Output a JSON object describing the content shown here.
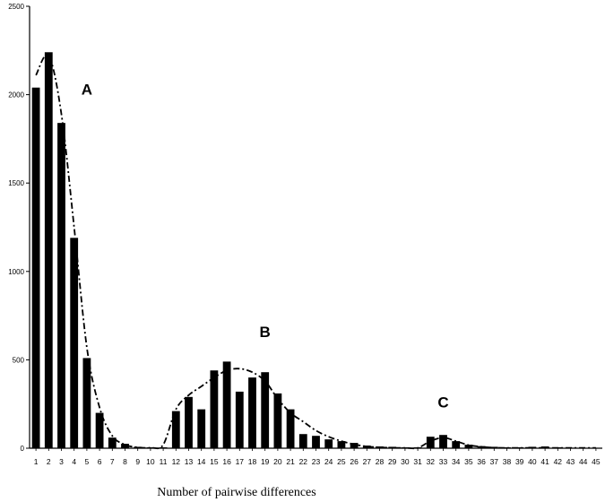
{
  "chart_data": {
    "type": "bar",
    "title": "",
    "xlabel": "Number of pairwise differences",
    "ylabel": "",
    "ylim": [
      0,
      2500
    ],
    "y_ticks": [
      "0",
      "500",
      "1000",
      "1500",
      "2000",
      "2500"
    ],
    "grid": false,
    "categories": [
      "1",
      "2",
      "3",
      "4",
      "5",
      "6",
      "7",
      "8",
      "9",
      "10",
      "11",
      "12",
      "13",
      "14",
      "15",
      "16",
      "17",
      "18",
      "19",
      "20",
      "21",
      "22",
      "23",
      "24",
      "25",
      "26",
      "27",
      "28",
      "29",
      "30",
      "31",
      "32",
      "33",
      "34",
      "35",
      "36",
      "37",
      "38",
      "39",
      "40",
      "41",
      "42",
      "43",
      "44",
      "45"
    ],
    "x_tick_labels": [
      "1",
      "2",
      "3",
      "4",
      "5",
      "6",
      "7",
      "8",
      "9",
      "10",
      "11",
      "12",
      "13",
      "14",
      "15",
      "16",
      "17",
      "18",
      "19",
      "20",
      "21",
      "22",
      "23",
      "24",
      "25",
      "26",
      "27",
      "28",
      "29",
      "30",
      "31",
      "32",
      "33",
      "34",
      "35",
      "36",
      "37",
      "38",
      "39",
      "40",
      "41",
      "42",
      "43",
      "44",
      "45"
    ],
    "series": [
      {
        "kind": "bar",
        "values": [
          2040,
          2240,
          1840,
          1190,
          510,
          200,
          60,
          25,
          8,
          5,
          5,
          210,
          290,
          220,
          440,
          490,
          320,
          400,
          430,
          310,
          220,
          80,
          70,
          50,
          40,
          30,
          15,
          10,
          8,
          5,
          5,
          65,
          75,
          40,
          20,
          12,
          8,
          5,
          5,
          8,
          10,
          5,
          3,
          2,
          2
        ]
      },
      {
        "kind": "line",
        "style": "dash-dot",
        "values": [
          2110,
          2220,
          1890,
          1250,
          570,
          230,
          70,
          20,
          5,
          3,
          20,
          220,
          300,
          350,
          400,
          440,
          450,
          430,
          380,
          280,
          200,
          150,
          100,
          65,
          40,
          22,
          10,
          5,
          2,
          2,
          2,
          40,
          60,
          40,
          18,
          8,
          3,
          2,
          2,
          2,
          2,
          2,
          2,
          2,
          2
        ]
      }
    ],
    "annotations": [
      {
        "text": "A",
        "x": 5,
        "y": 2000
      },
      {
        "text": "B",
        "x": 19,
        "y": 630
      },
      {
        "text": "C",
        "x": 33,
        "y": 230
      }
    ]
  }
}
